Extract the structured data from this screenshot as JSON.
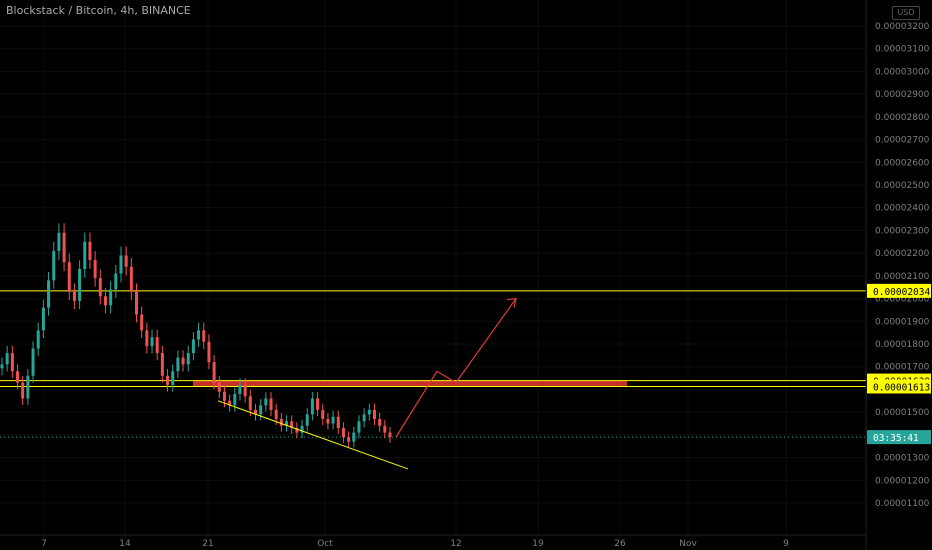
{
  "header": {
    "title": "Blockstack / Bitcoin, 4h, BINANCE",
    "settings_label": "USD"
  },
  "chart_data": {
    "type": "candlestick",
    "symbol": "Blockstack / Bitcoin",
    "interval": "4h",
    "exchange": "BINANCE",
    "ylim": [
      1e-05,
      3.33e-05
    ],
    "y_ticks": [
      "0.00001100",
      "0.00001200",
      "0.00001300",
      "0.00001400",
      "0.00001500",
      "0.00001600",
      "0.00001700",
      "0.00001800",
      "0.00001900",
      "0.00002000",
      "0.00002100",
      "0.00002200",
      "0.00002300",
      "0.00002400",
      "0.00002500",
      "0.00002600",
      "0.00002700",
      "0.00002800",
      "0.00002900",
      "0.00003000",
      "0.00003100",
      "0.00003200"
    ],
    "x_ticks": [
      "7",
      "14",
      "21",
      "Oct",
      "12",
      "19",
      "26",
      "Nov",
      "9"
    ],
    "horizontal_levels": [
      {
        "price": 2.034e-05,
        "label": "0.00002034",
        "color": "#ffff00"
      },
      {
        "price": 1.639e-05,
        "label": "0.00001639",
        "color": "#ffff00"
      },
      {
        "price": 1.613e-05,
        "label": "0.00001613",
        "color": "#ffff00"
      }
    ],
    "current_price": {
      "price": 1.39e-05,
      "label": "03:35:41",
      "color": "#26a69a"
    },
    "resistance_zone": {
      "from": 1.613e-05,
      "to": 1.639e-05,
      "color": "#e53935"
    },
    "colors": {
      "up": "#26a69a",
      "down": "#ef5350",
      "grid": "#0d0d0d",
      "axis_text": "#7f7f7f",
      "projection": "#e53935",
      "trendline": "#ffff00"
    },
    "candles_close": [
      1.71e-05,
      1.76e-05,
      1.68e-05,
      1.63e-05,
      1.56e-05,
      1.66e-05,
      1.78e-05,
      1.86e-05,
      1.96e-05,
      2.08e-05,
      2.21e-05,
      2.29e-05,
      2.16e-05,
      2.03e-05,
      1.99e-05,
      2.13e-05,
      2.25e-05,
      2.17e-05,
      2.09e-05,
      2.01e-05,
      1.97e-05,
      2.04e-05,
      2.11e-05,
      2.19e-05,
      2.14e-05,
      2.03e-05,
      1.93e-05,
      1.86e-05,
      1.79e-05,
      1.83e-05,
      1.76e-05,
      1.66e-05,
      1.62e-05,
      1.68e-05,
      1.74e-05,
      1.71e-05,
      1.76e-05,
      1.82e-05,
      1.86e-05,
      1.81e-05,
      1.72e-05,
      1.63e-05,
      1.59e-05,
      1.55e-05,
      1.53e-05,
      1.58e-05,
      1.62e-05,
      1.57e-05,
      1.51e-05,
      1.49e-05,
      1.53e-05,
      1.56e-05,
      1.51e-05,
      1.47e-05,
      1.44e-05,
      1.46e-05,
      1.43e-05,
      1.41e-05,
      1.44e-05,
      1.49e-05,
      1.56e-05,
      1.51e-05,
      1.47e-05,
      1.45e-05,
      1.48e-05,
      1.43e-05,
      1.39e-05,
      1.37e-05,
      1.41e-05,
      1.46e-05,
      1.49e-05,
      1.51e-05,
      1.47e-05,
      1.44e-05,
      1.41e-05,
      1.39e-05
    ]
  }
}
